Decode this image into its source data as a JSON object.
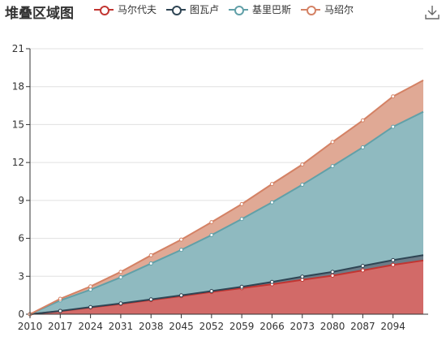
{
  "title": "堆叠区域图",
  "toolbox": {
    "icon": "download-icon"
  },
  "chart_data": {
    "type": "area",
    "stacked": true,
    "x": [
      2010,
      2017,
      2024,
      2031,
      2038,
      2045,
      2052,
      2059,
      2066,
      2073,
      2080,
      2087,
      2094,
      2101
    ],
    "x_tick_labels": [
      "2010",
      "2017",
      "2024",
      "2031",
      "2038",
      "2045",
      "2052",
      "2059",
      "2066",
      "2073",
      "2080",
      "2087",
      "2094"
    ],
    "y_ticks": [
      0,
      3,
      6,
      9,
      12,
      15,
      18,
      21
    ],
    "ylim": [
      0,
      21
    ],
    "grid": true,
    "legend_position": "top",
    "series": [
      {
        "name": "马尔代夫",
        "line_color": "#c23531",
        "fill_color": "#d26a68",
        "values": [
          0,
          0.24,
          0.53,
          0.81,
          1.12,
          1.43,
          1.76,
          2.06,
          2.37,
          2.72,
          3.05,
          3.47,
          3.9,
          4.25
        ]
      },
      {
        "name": "图瓦卢",
        "line_color": "#2f4554",
        "fill_color": "#6c7c88",
        "values": [
          0,
          0.02,
          0.03,
          0.04,
          0.05,
          0.06,
          0.07,
          0.11,
          0.18,
          0.25,
          0.3,
          0.35,
          0.38,
          0.42
        ]
      },
      {
        "name": "基里巴斯",
        "line_color": "#61a0a8",
        "fill_color": "#8fbac0",
        "values": [
          0,
          0.83,
          1.38,
          2.07,
          2.84,
          3.6,
          4.43,
          5.36,
          6.3,
          7.27,
          8.36,
          9.38,
          10.55,
          11.34
        ]
      },
      {
        "name": "马绍尔",
        "line_color": "#d48265",
        "fill_color": "#e0a995",
        "values": [
          0,
          0.13,
          0.26,
          0.43,
          0.65,
          0.81,
          1.02,
          1.18,
          1.45,
          1.6,
          1.91,
          2.13,
          2.4,
          2.49
        ]
      }
    ]
  }
}
